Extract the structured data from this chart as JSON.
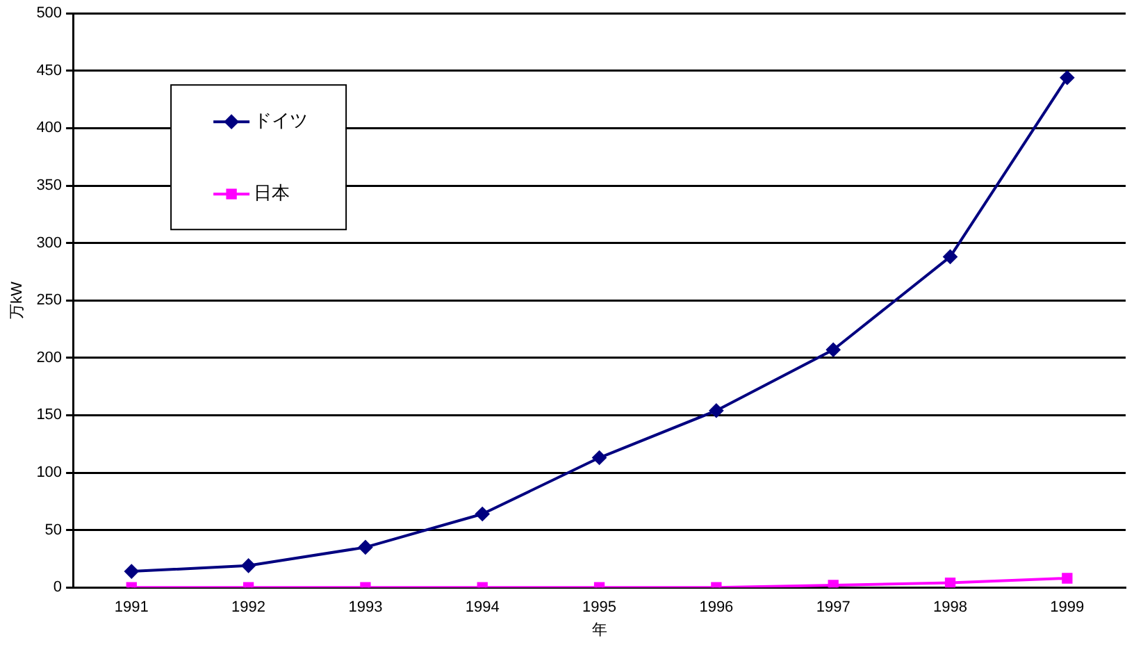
{
  "chart_data": {
    "type": "line",
    "xlabel": "年",
    "ylabel": "万kW",
    "categories": [
      "1991",
      "1992",
      "1993",
      "1994",
      "1995",
      "1996",
      "1997",
      "1998",
      "1999"
    ],
    "series": [
      {
        "name": "ドイツ",
        "color": "#000080",
        "marker": "diamond",
        "values": [
          14,
          19,
          35,
          64,
          113,
          154,
          207,
          288,
          444
        ]
      },
      {
        "name": "日本",
        "color": "#ff00ff",
        "marker": "square",
        "values": [
          0,
          0,
          0,
          0,
          0,
          0,
          2,
          4,
          8
        ]
      }
    ],
    "ylim": [
      0,
      500
    ],
    "yticks": [
      0,
      50,
      100,
      150,
      200,
      250,
      300,
      350,
      400,
      450,
      500
    ],
    "grid": "y",
    "legend": "top left"
  }
}
